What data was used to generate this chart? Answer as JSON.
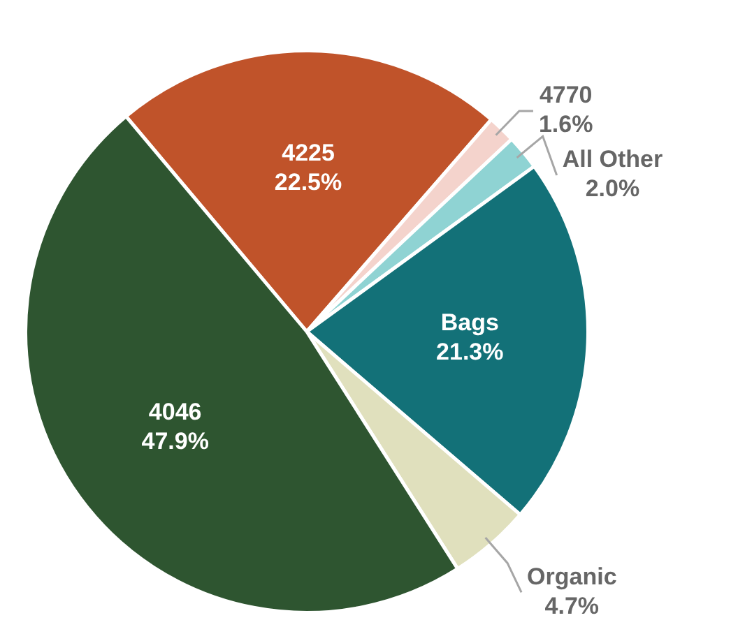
{
  "chart_data": {
    "type": "pie",
    "categories": [
      "4225",
      "4770",
      "All Other",
      "Bags",
      "Organic",
      "4046"
    ],
    "values": [
      22.5,
      1.6,
      2.0,
      21.3,
      4.7,
      47.9
    ],
    "colors": [
      "#c0532a",
      "#f4d3cc",
      "#8fd3d3",
      "#137178",
      "#e0e0bd",
      "#2e5530"
    ],
    "value_labels": [
      "22.5%",
      "1.6%",
      "2.0%",
      "21.3%",
      "4.7%",
      "47.9%"
    ]
  }
}
